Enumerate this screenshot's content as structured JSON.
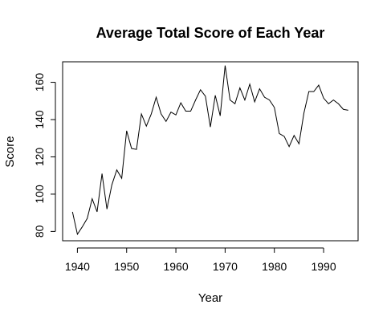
{
  "chart_data": {
    "type": "line",
    "title": "Average Total Score of Each Year",
    "xlabel": "Year",
    "ylabel": "Score",
    "xlim": [
      1937,
      1997
    ],
    "ylim": [
      75,
      171
    ],
    "xticks": [
      1940,
      1950,
      1960,
      1970,
      1980,
      1990
    ],
    "yticks": [
      80,
      100,
      120,
      140,
      160
    ],
    "grid": false,
    "series": [
      {
        "x": [
          1939,
          1940,
          1941,
          1942,
          1943,
          1944,
          1945,
          1946,
          1947,
          1948,
          1949,
          1950,
          1951,
          1952,
          1953,
          1954,
          1955,
          1956,
          1957,
          1958,
          1959,
          1960,
          1961,
          1962,
          1963,
          1964,
          1965,
          1966,
          1967,
          1968,
          1969,
          1970,
          1971,
          1972,
          1973,
          1974,
          1975,
          1976,
          1977,
          1978,
          1979,
          1980,
          1981,
          1982,
          1983,
          1984,
          1985,
          1986,
          1987,
          1988,
          1989,
          1990,
          1991,
          1992,
          1993,
          1994,
          1995
        ],
        "y": [
          90.5,
          78.5,
          82.5,
          87,
          97.5,
          90.5,
          111,
          92,
          105,
          113,
          108.5,
          134,
          124.5,
          124,
          143,
          136.5,
          143,
          152,
          143,
          139,
          144,
          142.5,
          149,
          144.5,
          144.5,
          150.5,
          156,
          152.5,
          136,
          153,
          142,
          169,
          150.5,
          148.5,
          157,
          150.5,
          159,
          149.5,
          156.5,
          152,
          150.5,
          146.5,
          132.5,
          131,
          125.5,
          131.5,
          127,
          143.5,
          155,
          155,
          158.5,
          151.5,
          148.5,
          150.5,
          148.5,
          145.5,
          145
        ]
      }
    ]
  }
}
